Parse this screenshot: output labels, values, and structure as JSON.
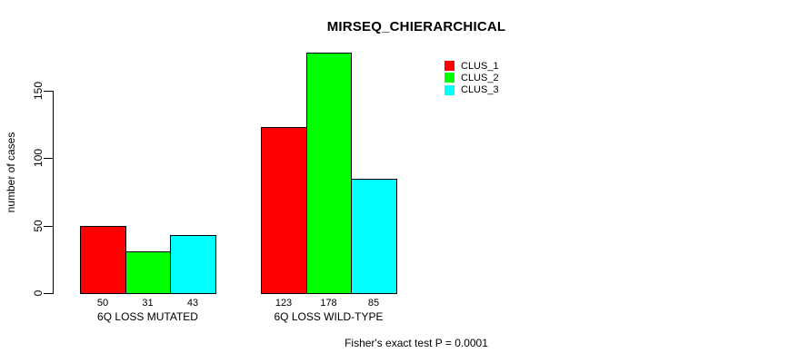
{
  "chart_data": {
    "type": "bar",
    "title": "MIRSEQ_CHIERARCHICAL",
    "ylabel": "number of cases",
    "xlabel": "",
    "categories": [
      "6Q LOSS MUTATED",
      "6Q LOSS WILD-TYPE"
    ],
    "series": [
      {
        "name": "CLUS_1",
        "color": "#FF0000",
        "values": [
          50,
          123
        ]
      },
      {
        "name": "CLUS_2",
        "color": "#00FF00",
        "values": [
          31,
          178
        ]
      },
      {
        "name": "CLUS_3",
        "color": "#00FFFF",
        "values": [
          43,
          85
        ]
      }
    ],
    "bar_value_labels_shown": true,
    "yticks": [
      0,
      50,
      100,
      150
    ],
    "ylim": [
      0,
      185
    ],
    "grid": false,
    "legend": {
      "position": "top-right",
      "boxed": false
    },
    "annotation": "Fisher's exact test P = 0.0001"
  }
}
